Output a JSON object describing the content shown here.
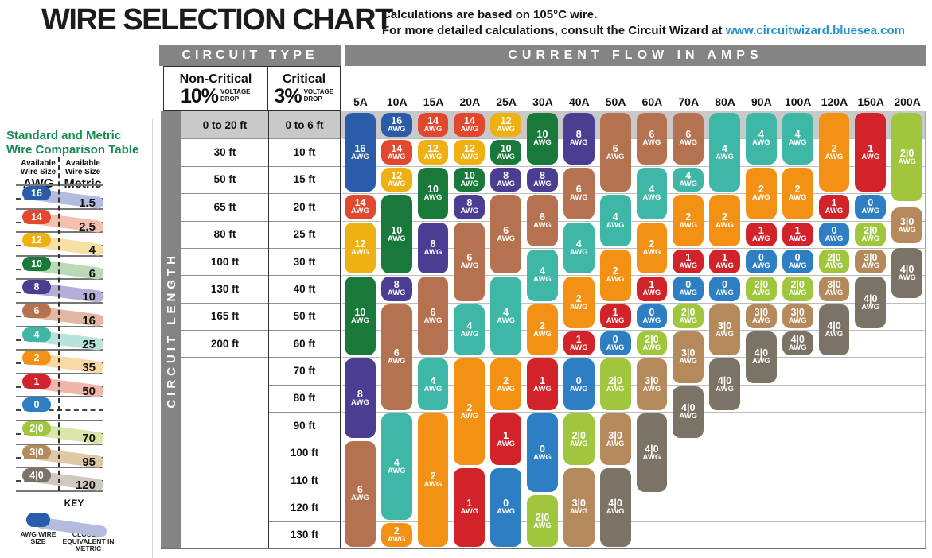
{
  "page": {
    "title": "WIRE SELECTION CHART",
    "subtitle_line1": "Calculations are based on 105°C wire.",
    "subtitle_line2": "For more detailed calculations, consult the Circuit Wizard at",
    "subtitle_link": "www.circuitwizard.bluesea.com"
  },
  "sidebar": {
    "title_line1": "Standard and Metric",
    "title_line2": "Wire Comparison Table",
    "left_header": "Available Wire Size",
    "left_sub": "AWG",
    "right_header": "Available Wire Size",
    "right_sub": "Metric",
    "key": {
      "title": "KEY",
      "left_label": "AWG WIRE SIZE",
      "right_label": "CLOSEST EQUIVALENT IN METRIC"
    }
  },
  "table": {
    "circuit_type_header": "CIRCUIT TYPE",
    "amps_header": "CURRENT FLOW IN AMPS",
    "length_header": "CIRCUIT LENGTH",
    "noncritical_title": "Non-Critical",
    "noncritical_pct": "10%",
    "noncritical_sub": "VOLTAGE DROP",
    "critical_title": "Critical",
    "critical_pct": "3%",
    "critical_sub": "VOLTAGE DROP"
  },
  "chart_data": {
    "type": "table",
    "title": "WIRE SELECTION CHART",
    "x_axis_label": "CURRENT FLOW IN AMPS",
    "y_axis_label": "CIRCUIT LENGTH",
    "awg_unit_suffix": "AWG",
    "amps": [
      "5A",
      "10A",
      "15A",
      "20A",
      "25A",
      "30A",
      "40A",
      "50A",
      "60A",
      "70A",
      "80A",
      "90A",
      "100A",
      "120A",
      "150A",
      "200A"
    ],
    "row_labels_noncritical_10pct_drop": [
      "0 to 20 ft",
      "30 ft",
      "50 ft",
      "65 ft",
      "80 ft",
      "100 ft",
      "130 ft",
      "165 ft",
      "200 ft",
      "",
      "",
      "",
      "",
      "",
      "",
      ""
    ],
    "row_labels_critical_3pct_drop": [
      "0 to 6 ft",
      "10 ft",
      "15 ft",
      "20 ft",
      "25 ft",
      "30 ft",
      "40 ft",
      "50 ft",
      "60 ft",
      "70 ft",
      "80 ft",
      "90 ft",
      "100 ft",
      "110 ft",
      "120 ft",
      "130 ft"
    ],
    "awg_colors": {
      "16": "#2a5ca9",
      "14": "#e2482e",
      "12": "#eeb111",
      "10": "#19793b",
      "8": "#4b3d91",
      "6": "#b57250",
      "4": "#3eb7a7",
      "2": "#f39114",
      "1": "#d2232a",
      "0": "#2d7ec3",
      "2|0": "#9fc63d",
      "3|0": "#b48a5c",
      "4|0": "#7b7365"
    },
    "awg_band_colors": {
      "16": "#b3bbdf",
      "14": "#f2c0ad",
      "12": "#f6e0a6",
      "10": "#bcd9b6",
      "8": "#b5aed8",
      "6": "#e2b8a2",
      "4": "#b9e2d9",
      "2": "#f7d9a6",
      "1": "#f2b5ab",
      "0": "#aecbe8",
      "2|0": "#d9e5ab",
      "3|0": "#dfc8a6",
      "4|0": "#cfcabf"
    },
    "awg_metric_equivalents": [
      {
        "awg": "16",
        "metric": "1.5"
      },
      {
        "awg": "14",
        "metric": "2.5"
      },
      {
        "awg": "12",
        "metric": "4"
      },
      {
        "awg": "10",
        "metric": "6"
      },
      {
        "awg": "8",
        "metric": "10"
      },
      {
        "awg": "6",
        "metric": "16"
      },
      {
        "awg": "4",
        "metric": "25"
      },
      {
        "awg": "2",
        "metric": "35"
      },
      {
        "awg": "1",
        "metric": "50"
      },
      {
        "awg": "0",
        "metric": ""
      },
      {
        "awg": "2|0",
        "metric": "70"
      },
      {
        "awg": "3|0",
        "metric": "95"
      },
      {
        "awg": "4|0",
        "metric": "120"
      }
    ],
    "columns": [
      {
        "amps": "5A",
        "segments": [
          {
            "awg": "16",
            "from": 0,
            "to": 2
          },
          {
            "awg": "14",
            "from": 3,
            "to": 3
          },
          {
            "awg": "12",
            "from": 4,
            "to": 5
          },
          {
            "awg": "10",
            "from": 6,
            "to": 8
          },
          {
            "awg": "8",
            "from": 9,
            "to": 11
          },
          {
            "awg": "6",
            "from": 12,
            "to": 15
          }
        ]
      },
      {
        "amps": "10A",
        "segments": [
          {
            "awg": "16",
            "from": 0,
            "to": 0
          },
          {
            "awg": "14",
            "from": 1,
            "to": 1
          },
          {
            "awg": "12",
            "from": 2,
            "to": 2
          },
          {
            "awg": "10",
            "from": 3,
            "to": 5
          },
          {
            "awg": "8",
            "from": 6,
            "to": 6
          },
          {
            "awg": "6",
            "from": 7,
            "to": 10
          },
          {
            "awg": "4",
            "from": 11,
            "to": 14
          },
          {
            "awg": "2",
            "from": 15,
            "to": 15
          }
        ]
      },
      {
        "amps": "15A",
        "segments": [
          {
            "awg": "14",
            "from": 0,
            "to": 0
          },
          {
            "awg": "12",
            "from": 1,
            "to": 1
          },
          {
            "awg": "10",
            "from": 2,
            "to": 3
          },
          {
            "awg": "8",
            "from": 4,
            "to": 5
          },
          {
            "awg": "6",
            "from": 6,
            "to": 8
          },
          {
            "awg": "4",
            "from": 9,
            "to": 10
          },
          {
            "awg": "2",
            "from": 11,
            "to": 15
          }
        ]
      },
      {
        "amps": "20A",
        "segments": [
          {
            "awg": "14",
            "from": 0,
            "to": 0
          },
          {
            "awg": "12",
            "from": 1,
            "to": 1
          },
          {
            "awg": "10",
            "from": 2,
            "to": 2
          },
          {
            "awg": "8",
            "from": 3,
            "to": 3
          },
          {
            "awg": "6",
            "from": 4,
            "to": 6
          },
          {
            "awg": "4",
            "from": 7,
            "to": 8
          },
          {
            "awg": "2",
            "from": 9,
            "to": 12
          },
          {
            "awg": "1",
            "from": 13,
            "to": 15
          }
        ]
      },
      {
        "amps": "25A",
        "segments": [
          {
            "awg": "12",
            "from": 0,
            "to": 0
          },
          {
            "awg": "10",
            "from": 1,
            "to": 1
          },
          {
            "awg": "8",
            "from": 2,
            "to": 2
          },
          {
            "awg": "6",
            "from": 3,
            "to": 5
          },
          {
            "awg": "4",
            "from": 6,
            "to": 8
          },
          {
            "awg": "2",
            "from": 9,
            "to": 10
          },
          {
            "awg": "1",
            "from": 11,
            "to": 12
          },
          {
            "awg": "0",
            "from": 13,
            "to": 15
          }
        ]
      },
      {
        "amps": "30A",
        "segments": [
          {
            "awg": "10",
            "from": 0,
            "to": 1
          },
          {
            "awg": "8",
            "from": 2,
            "to": 2
          },
          {
            "awg": "6",
            "from": 3,
            "to": 4
          },
          {
            "awg": "4",
            "from": 5,
            "to": 6
          },
          {
            "awg": "2",
            "from": 7,
            "to": 8
          },
          {
            "awg": "1",
            "from": 9,
            "to": 10
          },
          {
            "awg": "0",
            "from": 11,
            "to": 13
          },
          {
            "awg": "2|0",
            "from": 14,
            "to": 15
          }
        ]
      },
      {
        "amps": "40A",
        "segments": [
          {
            "awg": "8",
            "from": 0,
            "to": 1
          },
          {
            "awg": "6",
            "from": 2,
            "to": 3
          },
          {
            "awg": "4",
            "from": 4,
            "to": 5
          },
          {
            "awg": "2",
            "from": 6,
            "to": 7
          },
          {
            "awg": "1",
            "from": 8,
            "to": 8
          },
          {
            "awg": "0",
            "from": 9,
            "to": 10
          },
          {
            "awg": "2|0",
            "from": 11,
            "to": 12
          },
          {
            "awg": "3|0",
            "from": 13,
            "to": 15
          }
        ]
      },
      {
        "amps": "50A",
        "segments": [
          {
            "awg": "6",
            "from": 0,
            "to": 2
          },
          {
            "awg": "4",
            "from": 3,
            "to": 4
          },
          {
            "awg": "2",
            "from": 5,
            "to": 6
          },
          {
            "awg": "1",
            "from": 7,
            "to": 7
          },
          {
            "awg": "0",
            "from": 8,
            "to": 8
          },
          {
            "awg": "2|0",
            "from": 9,
            "to": 10
          },
          {
            "awg": "3|0",
            "from": 11,
            "to": 12
          },
          {
            "awg": "4|0",
            "from": 13,
            "to": 15
          }
        ]
      },
      {
        "amps": "60A",
        "segments": [
          {
            "awg": "6",
            "from": 0,
            "to": 1
          },
          {
            "awg": "4",
            "from": 2,
            "to": 3
          },
          {
            "awg": "2",
            "from": 4,
            "to": 5
          },
          {
            "awg": "1",
            "from": 6,
            "to": 6
          },
          {
            "awg": "0",
            "from": 7,
            "to": 7
          },
          {
            "awg": "2|0",
            "from": 8,
            "to": 8
          },
          {
            "awg": "3|0",
            "from": 9,
            "to": 10
          },
          {
            "awg": "4|0",
            "from": 11,
            "to": 13
          }
        ]
      },
      {
        "amps": "70A",
        "segments": [
          {
            "awg": "6",
            "from": 0,
            "to": 1
          },
          {
            "awg": "4",
            "from": 2,
            "to": 2
          },
          {
            "awg": "2",
            "from": 3,
            "to": 4
          },
          {
            "awg": "1",
            "from": 5,
            "to": 5
          },
          {
            "awg": "0",
            "from": 6,
            "to": 6
          },
          {
            "awg": "2|0",
            "from": 7,
            "to": 7
          },
          {
            "awg": "3|0",
            "from": 8,
            "to": 9
          },
          {
            "awg": "4|0",
            "from": 10,
            "to": 11
          }
        ]
      },
      {
        "amps": "80A",
        "segments": [
          {
            "awg": "4",
            "from": 0,
            "to": 2
          },
          {
            "awg": "2",
            "from": 3,
            "to": 4
          },
          {
            "awg": "1",
            "from": 5,
            "to": 5
          },
          {
            "awg": "0",
            "from": 6,
            "to": 6
          },
          {
            "awg": "3|0",
            "from": 7,
            "to": 8
          },
          {
            "awg": "4|0",
            "from": 9,
            "to": 10
          }
        ]
      },
      {
        "amps": "90A",
        "segments": [
          {
            "awg": "4",
            "from": 0,
            "to": 1
          },
          {
            "awg": "2",
            "from": 2,
            "to": 3
          },
          {
            "awg": "1",
            "from": 4,
            "to": 4
          },
          {
            "awg": "0",
            "from": 5,
            "to": 5
          },
          {
            "awg": "2|0",
            "from": 6,
            "to": 6
          },
          {
            "awg": "3|0",
            "from": 7,
            "to": 7
          },
          {
            "awg": "4|0",
            "from": 8,
            "to": 9
          }
        ]
      },
      {
        "amps": "100A",
        "segments": [
          {
            "awg": "4",
            "from": 0,
            "to": 1
          },
          {
            "awg": "2",
            "from": 2,
            "to": 3
          },
          {
            "awg": "1",
            "from": 4,
            "to": 4
          },
          {
            "awg": "0",
            "from": 5,
            "to": 5
          },
          {
            "awg": "2|0",
            "from": 6,
            "to": 6
          },
          {
            "awg": "3|0",
            "from": 7,
            "to": 7
          },
          {
            "awg": "4|0",
            "from": 8,
            "to": 8
          }
        ]
      },
      {
        "amps": "120A",
        "segments": [
          {
            "awg": "2",
            "from": 0,
            "to": 2
          },
          {
            "awg": "1",
            "from": 3,
            "to": 3
          },
          {
            "awg": "0",
            "from": 4,
            "to": 4
          },
          {
            "awg": "2|0",
            "from": 5,
            "to": 5
          },
          {
            "awg": "3|0",
            "from": 6,
            "to": 6
          },
          {
            "awg": "4|0",
            "from": 7,
            "to": 8
          }
        ]
      },
      {
        "amps": "150A",
        "segments": [
          {
            "awg": "1",
            "from": 0,
            "to": 2
          },
          {
            "awg": "0",
            "from": 3,
            "to": 3
          },
          {
            "awg": "2|0",
            "from": 4,
            "to": 4
          },
          {
            "awg": "3|0",
            "from": 5,
            "to": 5
          },
          {
            "awg": "4|0",
            "from": 6,
            "to": 7
          }
        ]
      },
      {
        "amps": "200A",
        "segments": [
          {
            "awg": "2|0",
            "from": 0,
            "to": 2.35
          },
          {
            "awg": "3|0",
            "from": 3.45,
            "to": 3.9
          },
          {
            "awg": "4|0",
            "from": 4.95,
            "to": 5.9
          }
        ]
      }
    ]
  }
}
